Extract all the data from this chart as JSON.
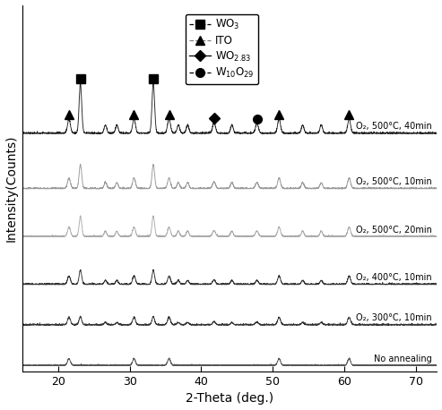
{
  "xlabel": "2-Theta (deg.)",
  "ylabel": "Intensity(Counts)",
  "xlim": [
    15,
    73
  ],
  "curve_labels": [
    "No annealing",
    "O₂, 300°C, 10min",
    "O₂, 400°C, 10min",
    "O₂, 500°C, 20min",
    "O₂, 500°C, 10min",
    "O₂, 500°C, 40min"
  ],
  "curve_offsets": [
    0.0,
    1.1,
    2.2,
    3.5,
    4.8,
    6.3
  ],
  "curve_colors": [
    "#555555",
    "#333333",
    "#333333",
    "#aaaaaa",
    "#999999",
    "#222222"
  ],
  "curve_lw": [
    0.7,
    0.7,
    0.7,
    0.7,
    0.7,
    0.7
  ],
  "ito_peaks": [
    21.5,
    30.6,
    35.5,
    50.9,
    60.7
  ],
  "wo3_peaks_main": [
    23.1,
    33.3
  ],
  "wo283_peaks": [
    41.8
  ],
  "w10o29_peaks": [
    47.8
  ],
  "wo3_extra_peaks": [
    26.6,
    28.2,
    36.8,
    38.1,
    44.3,
    54.2,
    56.8
  ],
  "legend_labels": [
    "WO$_3$",
    "ITO",
    "WO$_{2.83}$",
    "W$_{10}$O$_{29}$"
  ],
  "legend_markers": [
    "s",
    "^",
    "D",
    "o"
  ],
  "legend_linestyles": [
    "--",
    "--",
    "-",
    "--"
  ],
  "legend_linecolors": [
    "black",
    "gray",
    "black",
    "black"
  ]
}
